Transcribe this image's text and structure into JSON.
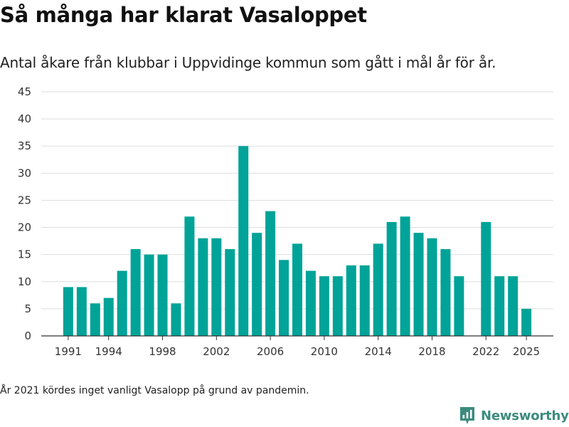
{
  "header": {
    "title": "Så många har klarat Vasaloppet",
    "subtitle": "Antal åkare från klubbar i Uppvidinge kommun som gått i mål år för år."
  },
  "footnote": "År 2021 kördes inget vanligt Vasalopp på grund av pandemin.",
  "brand": {
    "name": "Newsworthy",
    "icon": "newsworthy-logo-icon",
    "color": "#3c8b7e"
  },
  "colors": {
    "bar": "#00a398",
    "grid": "#dddddd",
    "axis": "#333333"
  },
  "chart_data": {
    "type": "bar",
    "title": "Så många har klarat Vasaloppet",
    "xlabel": "",
    "ylabel": "",
    "ylim": [
      0,
      45
    ],
    "xlim": [
      1989,
      2027
    ],
    "yticks": [
      0,
      5,
      10,
      15,
      20,
      25,
      30,
      35,
      40,
      45
    ],
    "xticks": [
      1991,
      1994,
      1998,
      2002,
      2006,
      2010,
      2014,
      2018,
      2022,
      2025
    ],
    "grid": true,
    "categories": [
      1991,
      1992,
      1993,
      1994,
      1995,
      1996,
      1997,
      1998,
      1999,
      2000,
      2001,
      2002,
      2003,
      2004,
      2005,
      2006,
      2007,
      2008,
      2009,
      2010,
      2011,
      2012,
      2013,
      2014,
      2015,
      2016,
      2017,
      2018,
      2019,
      2020,
      2021,
      2022,
      2023,
      2024,
      2025
    ],
    "values": [
      9,
      9,
      6,
      7,
      12,
      16,
      15,
      15,
      6,
      22,
      18,
      18,
      16,
      35,
      19,
      23,
      14,
      17,
      12,
      11,
      11,
      13,
      13,
      17,
      21,
      22,
      19,
      18,
      16,
      11,
      null,
      21,
      11,
      11,
      5
    ]
  }
}
